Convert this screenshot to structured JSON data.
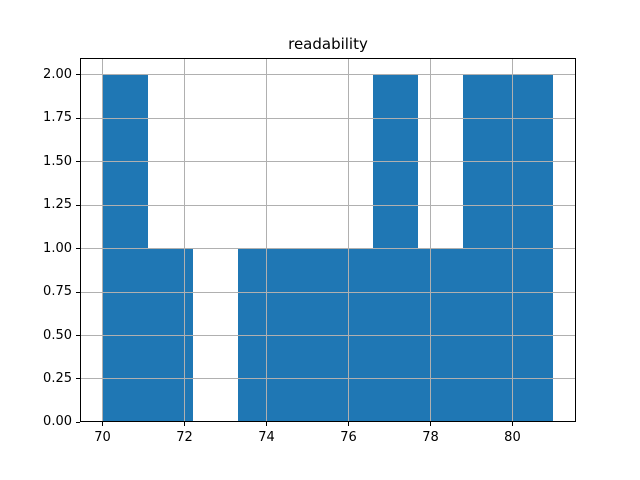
{
  "title": "readability",
  "colors": {
    "bar": "#1f77b4",
    "grid": "#b0b0b0",
    "spine": "#000000",
    "text": "#000000",
    "background": "#ffffff"
  },
  "chart_data": {
    "type": "bar",
    "subtype": "histogram",
    "title": "readability",
    "xlabel": "",
    "ylabel": "",
    "bin_edges": [
      70.0,
      71.1,
      72.2,
      73.3,
      74.4,
      75.5,
      76.6,
      77.7,
      78.8,
      79.9,
      81.0
    ],
    "counts": [
      2,
      1,
      0,
      1,
      1,
      1,
      2,
      1,
      2,
      2
    ],
    "xlim": [
      69.45,
      81.55
    ],
    "ylim": [
      0,
      2.1
    ],
    "x_ticks": [
      70,
      72,
      74,
      76,
      78,
      80
    ],
    "x_tick_labels": [
      "70",
      "72",
      "74",
      "76",
      "78",
      "80"
    ],
    "y_ticks": [
      0.0,
      0.25,
      0.5,
      0.75,
      1.0,
      1.25,
      1.5,
      1.75,
      2.0
    ],
    "y_tick_labels": [
      "0.00",
      "0.25",
      "0.50",
      "0.75",
      "1.00",
      "1.25",
      "1.50",
      "1.75",
      "2.00"
    ],
    "grid": true,
    "legend": null
  }
}
